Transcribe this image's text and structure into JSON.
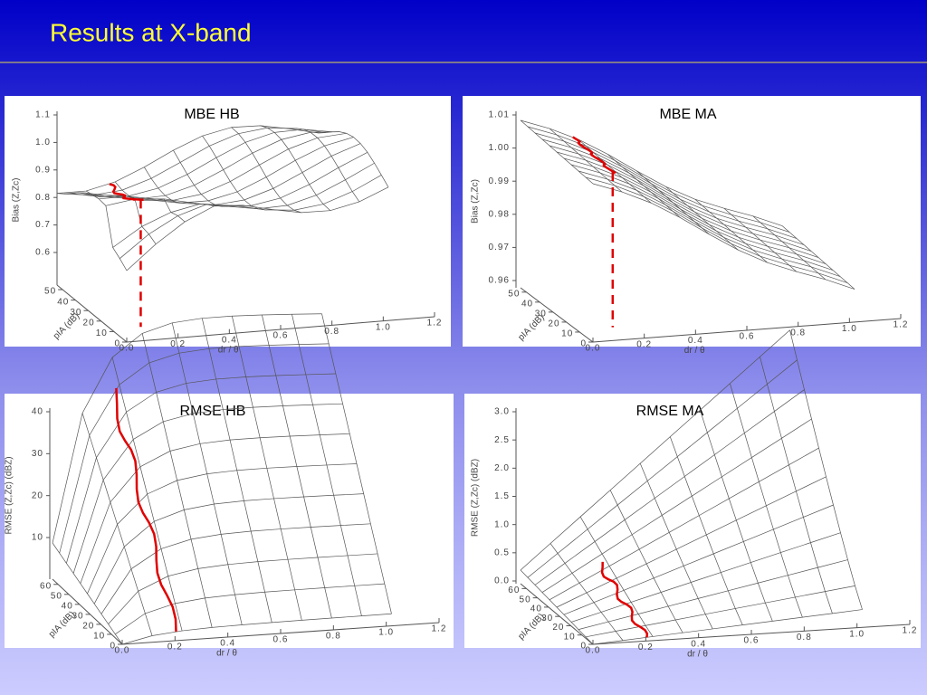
{
  "header": {
    "title": "Results at X-band"
  },
  "panels": [
    {
      "title": "MBE HB",
      "z_label": "Bias (Z,Zc)",
      "z_ticks": [
        "1.1",
        "1.0",
        "0.9",
        "0.8",
        "0.7",
        "0.6"
      ],
      "y_label": "pIA (dB)",
      "y_ticks": [
        "0",
        "10",
        "20",
        "30",
        "40",
        "50"
      ],
      "x_label": "dr / θ",
      "x_ticks": [
        "0.0",
        "0.2",
        "0.4",
        "0.6",
        "0.8",
        "1.0",
        "1.2"
      ]
    },
    {
      "title": "MBE MA",
      "z_label": "Bias (Z,Zc)",
      "z_ticks": [
        "1.01",
        "1.00",
        "0.99",
        "0.98",
        "0.97",
        "0.96"
      ],
      "y_label": "pIA (dB)",
      "y_ticks": [
        "0",
        "10",
        "20",
        "30",
        "40",
        "50"
      ],
      "x_label": "dr / θ",
      "x_ticks": [
        "0.0",
        "0.2",
        "0.4",
        "0.6",
        "0.8",
        "1.0",
        "1.2"
      ]
    },
    {
      "title": "RMSE HB",
      "z_label": "RMSE (Z,Zc) (dBZ)",
      "z_ticks": [
        "40",
        "30",
        "20",
        "10"
      ],
      "y_label": "pIA (dB)",
      "y_ticks": [
        "0",
        "10",
        "20",
        "30",
        "40",
        "50",
        "60"
      ],
      "x_label": "dr / θ",
      "x_ticks": [
        "0.0",
        "0.2",
        "0.4",
        "0.6",
        "0.8",
        "1.0",
        "1.2"
      ]
    },
    {
      "title": "RMSE MA",
      "z_label": "RMSE (Z,Zc) (dBZ)",
      "z_ticks": [
        "3.0",
        "2.5",
        "2.0",
        "1.5",
        "1.0",
        "0.5",
        "0.0"
      ],
      "y_label": "pIA (dB)",
      "y_ticks": [
        "0",
        "10",
        "20",
        "30",
        "40",
        "50",
        "60"
      ],
      "x_label": "dr / θ",
      "x_ticks": [
        "0.0",
        "0.2",
        "0.4",
        "0.6",
        "0.8",
        "1.0",
        "1.2"
      ]
    }
  ]
}
